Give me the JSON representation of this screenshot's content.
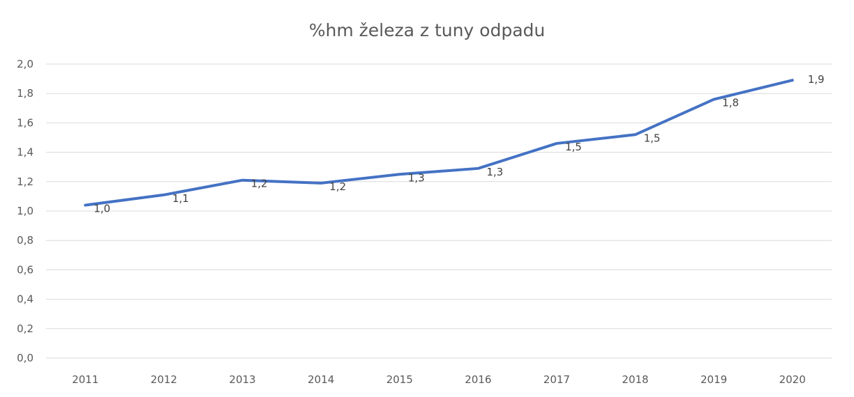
{
  "chart_data": {
    "type": "line",
    "title": "%hm železa z tuny odpadu",
    "categories": [
      "2011",
      "2012",
      "2013",
      "2014",
      "2015",
      "2016",
      "2017",
      "2018",
      "2019",
      "2020"
    ],
    "series": [
      {
        "values": [
          1.04,
          1.11,
          1.21,
          1.19,
          1.25,
          1.29,
          1.46,
          1.52,
          1.76,
          1.89
        ],
        "labels": [
          "1,0",
          "1,1",
          "1,2",
          "1,2",
          "1,3",
          "1,3",
          "1,5",
          "1,5",
          "1,8",
          "1,9"
        ],
        "color": "#4472c4"
      }
    ],
    "yticks": [
      "0,0",
      "0,2",
      "0,4",
      "0,6",
      "0,8",
      "1,0",
      "1,2",
      "1,4",
      "1,6",
      "1,8",
      "2,0"
    ],
    "ylim": [
      0,
      2.0
    ],
    "xlabel": "",
    "ylabel": "",
    "grid": true,
    "legend": "none"
  }
}
